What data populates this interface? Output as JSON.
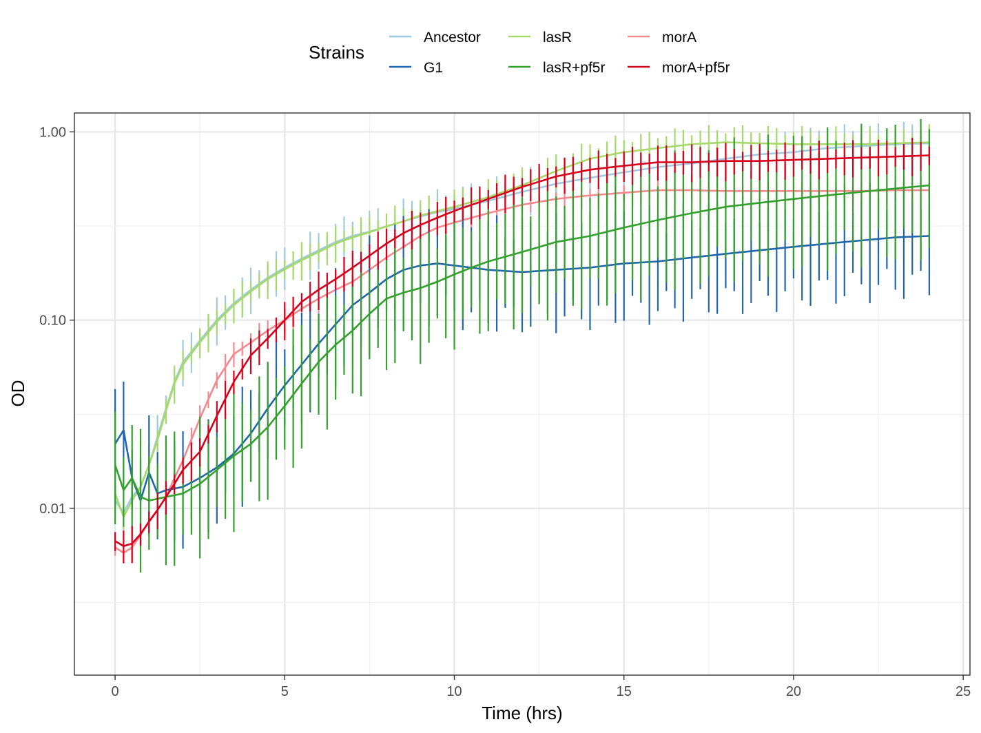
{
  "chart_data": {
    "type": "line",
    "xlabel": "Time (hrs)",
    "ylabel": "OD",
    "x_scale": "linear",
    "y_scale": "log10",
    "xlim": [
      -1.2,
      25.2
    ],
    "ylim": [
      0.0013,
      1.26
    ],
    "x_ticks": [
      0,
      5,
      10,
      15,
      20,
      25
    ],
    "x_tick_labels": [
      "0",
      "5",
      "10",
      "15",
      "20",
      "25"
    ],
    "y_ticks": [
      0.01,
      0.1,
      1.0
    ],
    "y_tick_labels": [
      "0.01",
      "0.10",
      "1.00"
    ],
    "grid": true,
    "error_bars": true,
    "legend": {
      "title": "Strains",
      "position": "top"
    },
    "series": [
      {
        "name": "Ancestor",
        "color": "#9ECAE1",
        "points": [
          [
            0,
            0.011
          ],
          [
            0.25,
            0.0095
          ],
          [
            0.5,
            0.0115
          ],
          [
            0.75,
            0.013
          ],
          [
            1,
            0.017
          ],
          [
            1.25,
            0.024
          ],
          [
            1.5,
            0.034
          ],
          [
            1.75,
            0.047
          ],
          [
            2,
            0.06
          ],
          [
            2.25,
            0.068
          ],
          [
            2.5,
            0.078
          ],
          [
            3,
            0.1
          ],
          [
            3.5,
            0.123
          ],
          [
            4,
            0.145
          ],
          [
            4.5,
            0.168
          ],
          [
            5,
            0.19
          ],
          [
            5.5,
            0.212
          ],
          [
            6,
            0.235
          ],
          [
            6.5,
            0.26
          ],
          [
            7,
            0.28
          ],
          [
            7.5,
            0.295
          ],
          [
            8,
            0.315
          ],
          [
            8.5,
            0.335
          ],
          [
            9,
            0.355
          ],
          [
            9.5,
            0.375
          ],
          [
            10,
            0.39
          ],
          [
            11,
            0.43
          ],
          [
            12,
            0.48
          ],
          [
            13,
            0.53
          ],
          [
            14,
            0.57
          ],
          [
            15,
            0.61
          ],
          [
            16,
            0.65
          ],
          [
            17,
            0.68
          ],
          [
            18,
            0.72
          ],
          [
            19,
            0.76
          ],
          [
            20,
            0.78
          ],
          [
            21,
            0.82
          ],
          [
            22,
            0.84
          ],
          [
            23,
            0.86
          ],
          [
            24,
            0.87
          ]
        ],
        "err": 0.1
      },
      {
        "name": "G1",
        "color": "#2166AC",
        "points": [
          [
            0,
            0.022
          ],
          [
            0.25,
            0.026
          ],
          [
            0.5,
            0.0145
          ],
          [
            0.75,
            0.011
          ],
          [
            1,
            0.0155
          ],
          [
            1.25,
            0.012
          ],
          [
            1.5,
            0.0125
          ],
          [
            2,
            0.013
          ],
          [
            2.5,
            0.0145
          ],
          [
            3,
            0.0165
          ],
          [
            3.5,
            0.0195
          ],
          [
            4,
            0.025
          ],
          [
            4.5,
            0.034
          ],
          [
            5,
            0.045
          ],
          [
            5.5,
            0.058
          ],
          [
            6,
            0.075
          ],
          [
            6.5,
            0.095
          ],
          [
            7,
            0.12
          ],
          [
            7.5,
            0.14
          ],
          [
            8,
            0.165
          ],
          [
            8.5,
            0.185
          ],
          [
            9,
            0.195
          ],
          [
            9.5,
            0.2
          ],
          [
            10,
            0.195
          ],
          [
            10.5,
            0.19
          ],
          [
            11,
            0.185
          ],
          [
            12,
            0.18
          ],
          [
            13,
            0.185
          ],
          [
            14,
            0.19
          ],
          [
            15,
            0.2
          ],
          [
            16,
            0.205
          ],
          [
            17,
            0.215
          ],
          [
            18,
            0.225
          ],
          [
            19,
            0.235
          ],
          [
            20,
            0.245
          ],
          [
            21,
            0.255
          ],
          [
            22,
            0.265
          ],
          [
            23,
            0.275
          ],
          [
            24,
            0.28
          ]
        ],
        "err": 0.25
      },
      {
        "name": "lasR",
        "color": "#A6D96A",
        "points": [
          [
            0,
            0.012
          ],
          [
            0.25,
            0.009
          ],
          [
            0.5,
            0.011
          ],
          [
            0.75,
            0.013
          ],
          [
            1,
            0.017
          ],
          [
            1.25,
            0.023
          ],
          [
            1.5,
            0.033
          ],
          [
            1.75,
            0.046
          ],
          [
            2,
            0.058
          ],
          [
            2.5,
            0.076
          ],
          [
            3,
            0.098
          ],
          [
            3.5,
            0.12
          ],
          [
            4,
            0.142
          ],
          [
            4.5,
            0.165
          ],
          [
            5,
            0.186
          ],
          [
            5.5,
            0.208
          ],
          [
            6,
            0.23
          ],
          [
            6.5,
            0.255
          ],
          [
            7,
            0.275
          ],
          [
            7.5,
            0.293
          ],
          [
            8,
            0.315
          ],
          [
            8.5,
            0.335
          ],
          [
            9,
            0.36
          ],
          [
            9.5,
            0.38
          ],
          [
            10,
            0.4
          ],
          [
            11,
            0.45
          ],
          [
            12,
            0.52
          ],
          [
            13,
            0.62
          ],
          [
            14,
            0.72
          ],
          [
            15,
            0.78
          ],
          [
            16,
            0.82
          ],
          [
            17,
            0.86
          ],
          [
            18,
            0.88
          ],
          [
            19,
            0.87
          ],
          [
            20,
            0.86
          ],
          [
            21,
            0.86
          ],
          [
            22,
            0.86
          ],
          [
            23,
            0.87
          ],
          [
            24,
            0.88
          ]
        ],
        "err": 0.08
      },
      {
        "name": "lasR+pf5r",
        "color": "#33A02C",
        "points": [
          [
            0,
            0.017
          ],
          [
            0.25,
            0.0125
          ],
          [
            0.5,
            0.0145
          ],
          [
            0.75,
            0.0115
          ],
          [
            1,
            0.011
          ],
          [
            1.5,
            0.0115
          ],
          [
            2,
            0.012
          ],
          [
            2.5,
            0.0135
          ],
          [
            3,
            0.016
          ],
          [
            3.5,
            0.019
          ],
          [
            4,
            0.022
          ],
          [
            4.5,
            0.027
          ],
          [
            5,
            0.035
          ],
          [
            5.5,
            0.046
          ],
          [
            6,
            0.06
          ],
          [
            6.5,
            0.074
          ],
          [
            7,
            0.088
          ],
          [
            7.5,
            0.108
          ],
          [
            8,
            0.13
          ],
          [
            8.5,
            0.14
          ],
          [
            9,
            0.148
          ],
          [
            9.5,
            0.16
          ],
          [
            10,
            0.175
          ],
          [
            10.5,
            0.19
          ],
          [
            11,
            0.205
          ],
          [
            12,
            0.23
          ],
          [
            13,
            0.26
          ],
          [
            14,
            0.28
          ],
          [
            15,
            0.31
          ],
          [
            16,
            0.34
          ],
          [
            17,
            0.37
          ],
          [
            18,
            0.4
          ],
          [
            19,
            0.42
          ],
          [
            20,
            0.44
          ],
          [
            21,
            0.46
          ],
          [
            22,
            0.48
          ],
          [
            23,
            0.5
          ],
          [
            24,
            0.52
          ]
        ],
        "err": 0.3
      },
      {
        "name": "morA",
        "color": "#F4888D",
        "points": [
          [
            0,
            0.0062
          ],
          [
            0.25,
            0.0058
          ],
          [
            0.5,
            0.0062
          ],
          [
            0.75,
            0.0072
          ],
          [
            1,
            0.0085
          ],
          [
            1.25,
            0.0098
          ],
          [
            1.5,
            0.0115
          ],
          [
            1.75,
            0.0145
          ],
          [
            2,
            0.018
          ],
          [
            2.5,
            0.03
          ],
          [
            3,
            0.048
          ],
          [
            3.5,
            0.066
          ],
          [
            4,
            0.076
          ],
          [
            4.5,
            0.088
          ],
          [
            5,
            0.1
          ],
          [
            5.5,
            0.115
          ],
          [
            6,
            0.13
          ],
          [
            6.5,
            0.145
          ],
          [
            7,
            0.16
          ],
          [
            7.5,
            0.185
          ],
          [
            8,
            0.215
          ],
          [
            8.5,
            0.245
          ],
          [
            9,
            0.28
          ],
          [
            9.5,
            0.31
          ],
          [
            10,
            0.33
          ],
          [
            11,
            0.37
          ],
          [
            12,
            0.41
          ],
          [
            13,
            0.44
          ],
          [
            14,
            0.46
          ],
          [
            15,
            0.475
          ],
          [
            16,
            0.49
          ],
          [
            17,
            0.49
          ],
          [
            18,
            0.485
          ],
          [
            19,
            0.485
          ],
          [
            20,
            0.485
          ],
          [
            21,
            0.485
          ],
          [
            22,
            0.485
          ],
          [
            23,
            0.49
          ],
          [
            24,
            0.49
          ]
        ],
        "err": 0.06
      },
      {
        "name": "morA+pf5r",
        "color": "#D7001C",
        "points": [
          [
            0,
            0.0067
          ],
          [
            0.25,
            0.0063
          ],
          [
            0.5,
            0.0065
          ],
          [
            0.75,
            0.0073
          ],
          [
            1,
            0.0085
          ],
          [
            1.25,
            0.0098
          ],
          [
            1.5,
            0.0115
          ],
          [
            1.75,
            0.0135
          ],
          [
            2,
            0.016
          ],
          [
            2.5,
            0.02
          ],
          [
            3,
            0.031
          ],
          [
            3.5,
            0.047
          ],
          [
            4,
            0.065
          ],
          [
            4.5,
            0.08
          ],
          [
            5,
            0.1
          ],
          [
            5.5,
            0.125
          ],
          [
            6,
            0.145
          ],
          [
            6.5,
            0.165
          ],
          [
            7,
            0.19
          ],
          [
            7.5,
            0.22
          ],
          [
            8,
            0.255
          ],
          [
            8.5,
            0.29
          ],
          [
            9,
            0.32
          ],
          [
            9.5,
            0.35
          ],
          [
            10,
            0.38
          ],
          [
            11,
            0.44
          ],
          [
            12,
            0.51
          ],
          [
            13,
            0.58
          ],
          [
            14,
            0.63
          ],
          [
            15,
            0.66
          ],
          [
            16,
            0.69
          ],
          [
            17,
            0.69
          ],
          [
            18,
            0.7
          ],
          [
            19,
            0.7
          ],
          [
            20,
            0.71
          ],
          [
            21,
            0.72
          ],
          [
            22,
            0.73
          ],
          [
            23,
            0.74
          ],
          [
            24,
            0.75
          ]
        ],
        "err": 0.08
      }
    ]
  }
}
